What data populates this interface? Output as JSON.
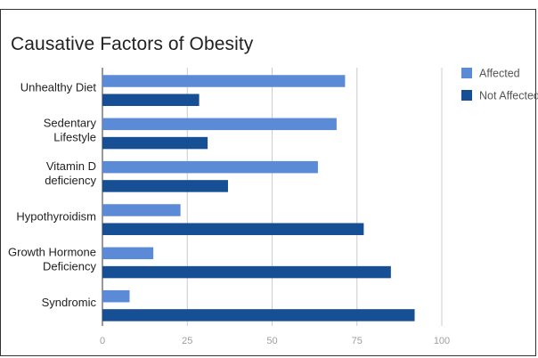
{
  "chart_data": {
    "type": "bar",
    "orientation": "horizontal",
    "title": "Causative Factors of Obesity",
    "categories": [
      [
        "Unhealthy Diet"
      ],
      [
        "Sedentary",
        "Lifestyle"
      ],
      [
        "Vitamin D",
        "deficiency"
      ],
      [
        "Hypothyroidism"
      ],
      [
        "Growth Hormone",
        "Deficiency"
      ],
      [
        "Syndromic"
      ]
    ],
    "series": [
      {
        "name": "Affected",
        "color": "#5b8bd6",
        "values": [
          71.5,
          69,
          63.5,
          23,
          15,
          8
        ]
      },
      {
        "name": "Not Affected",
        "color": "#164f93",
        "values": [
          28.5,
          31,
          37,
          77,
          85,
          92
        ]
      }
    ],
    "xlim": [
      0,
      100
    ],
    "xticks": [
      0,
      25,
      50,
      75,
      100
    ],
    "grid": true,
    "legend_position": "top-right"
  }
}
